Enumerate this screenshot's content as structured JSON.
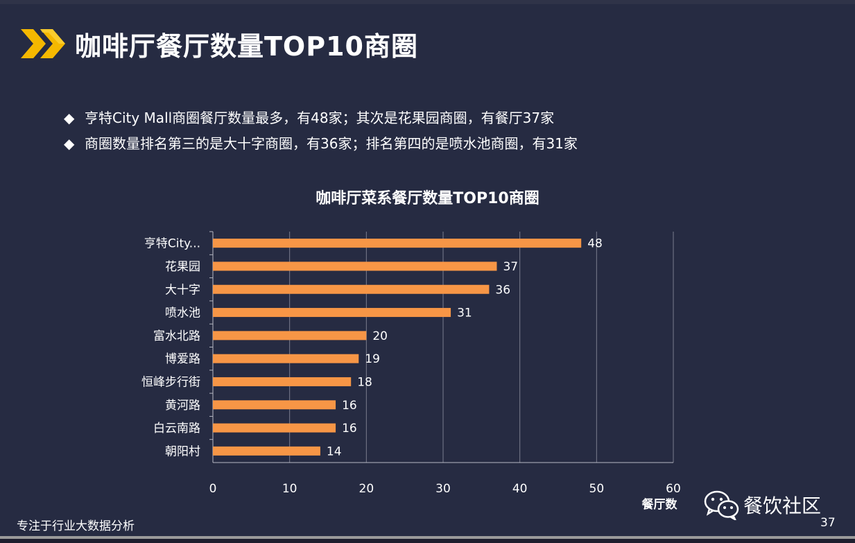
{
  "header": {
    "title": "咖啡厅餐厅数量TOP10商圈",
    "accent_color": "#f5b800",
    "icon": "double-chevron-icon"
  },
  "bullets": [
    {
      "mark": "◆",
      "text": "亨特City Mall商圈餐厅数量最多，有48家；其次是花果园商圈，有餐厅37家"
    },
    {
      "mark": "◆",
      "text": "商圈数量排名第三的是大十字商圈，有36家；排名第四的是喷水池商圈，有31家"
    }
  ],
  "chart_data": {
    "type": "bar",
    "orientation": "horizontal",
    "title": "咖啡厅菜系餐厅数量TOP10商圈",
    "xlabel": "餐厅数",
    "ylabel": "",
    "categories": [
      "亨特City...",
      "花果园",
      "大十字",
      "喷水池",
      "富水北路",
      "博爱路",
      "恒峰步行街",
      "黄河路",
      "白云南路",
      "朝阳村"
    ],
    "values": [
      48,
      37,
      36,
      31,
      20,
      19,
      18,
      16,
      16,
      14
    ],
    "xlim": [
      0,
      60
    ],
    "xticks": [
      0,
      10,
      20,
      30,
      40,
      50,
      60
    ],
    "bar_color": "#f79646",
    "grid": true,
    "data_labels": true,
    "legend": "none"
  },
  "footer": {
    "tagline": "专注于行业大数据分析",
    "brand": "餐饮社区",
    "brand_icon": "wechat-icon",
    "page_number": "37"
  }
}
